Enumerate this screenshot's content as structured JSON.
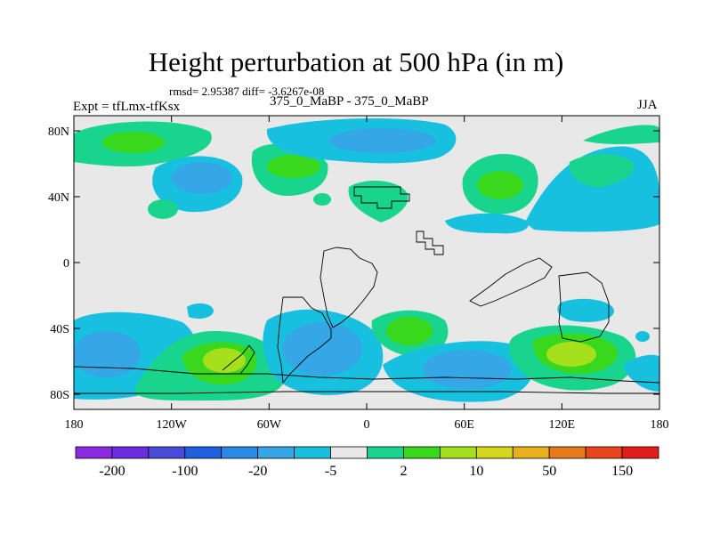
{
  "title": "Height perturbation at 500 hPa (in m)",
  "stats": "rmsd= 2.95387 diff= -3.6267e-08",
  "expt": "Expt = tfLmx-tfKsx",
  "subtitle": "375_0_MaBP - 375_0_MaBP",
  "season": "JJA",
  "axes": {
    "lat_ticks": [
      {
        "label": "80N",
        "value": 80
      },
      {
        "label": "40N",
        "value": 40
      },
      {
        "label": "0",
        "value": 0
      },
      {
        "label": "40S",
        "value": -40
      },
      {
        "label": "80S",
        "value": -80
      }
    ],
    "lon_ticks": [
      {
        "label": "180",
        "value": -180
      },
      {
        "label": "120W",
        "value": -120
      },
      {
        "label": "60W",
        "value": -60
      },
      {
        "label": "0",
        "value": 0
      },
      {
        "label": "60E",
        "value": 60
      },
      {
        "label": "120E",
        "value": 120
      },
      {
        "label": "180",
        "value": 180
      }
    ]
  },
  "colorbar": {
    "colors": [
      "#8a2be2",
      "#6a2ee0",
      "#4b4bdb",
      "#1f5fe0",
      "#2a8ae6",
      "#35a6e6",
      "#18c0e0",
      "#e8e8e8",
      "#19d48c",
      "#39d81c",
      "#a6e01c",
      "#d6d61c",
      "#e8b01c",
      "#e87a1c",
      "#e8461c",
      "#e21c1c"
    ],
    "labels": [
      "-200",
      "-100",
      "-20",
      "-5",
      "2",
      "10",
      "50",
      "150"
    ]
  },
  "field_colors": {
    "background": "#e8e8e8",
    "cyan": "#18c0e0",
    "lightblue": "#35a6e6",
    "teal": "#19d48c",
    "green": "#39d81c",
    "yellowgreen": "#a6e01c"
  }
}
